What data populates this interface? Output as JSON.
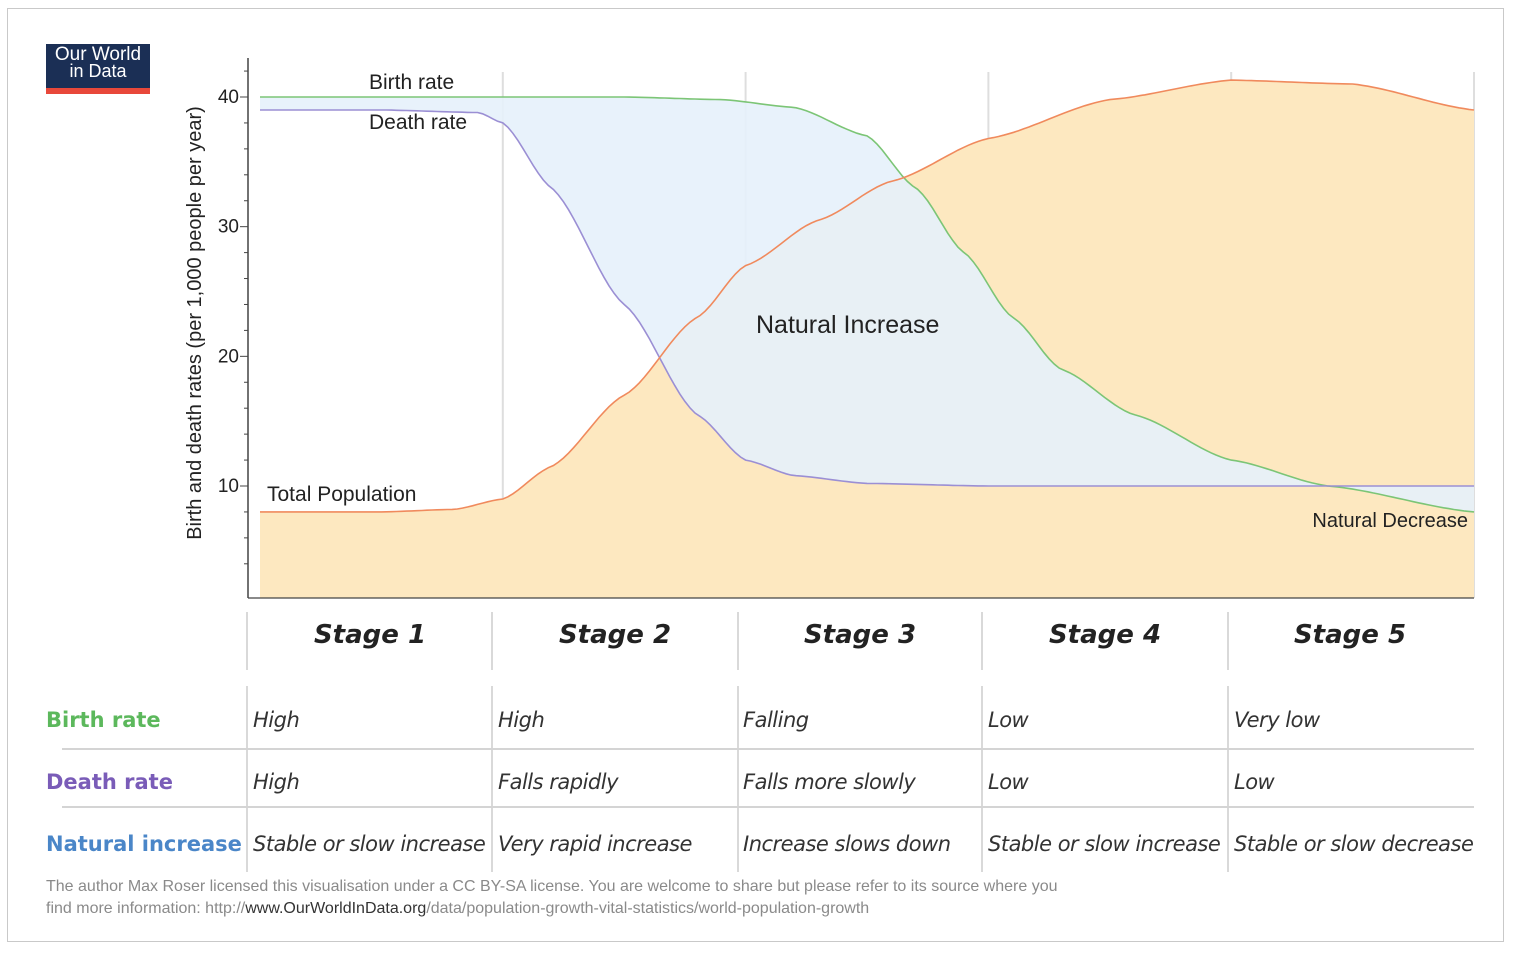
{
  "logo": {
    "line1": "Our World",
    "line2": "in Data"
  },
  "chart_data": {
    "type": "area",
    "ylabel": "Birth and death rates (per 1,000 people per year)",
    "yticks": [
      10,
      20,
      30,
      40
    ],
    "ylim": [
      3,
      43
    ],
    "x_stages": [
      "Stage 1",
      "Stage 2",
      "Stage 3",
      "Stage 4",
      "Stage 5"
    ],
    "xlim": [
      0,
      5
    ],
    "series": [
      {
        "name": "Birth rate",
        "color": "#7cc576",
        "x": [
          0,
          0.5,
          1,
          1.5,
          1.9,
          2.2,
          2.5,
          2.7,
          2.9,
          3.1,
          3.3,
          3.6,
          4.0,
          4.4,
          5.0
        ],
        "values": [
          40,
          40,
          40,
          40,
          39.8,
          39.2,
          37,
          33,
          28,
          23,
          19,
          15.5,
          12,
          10,
          8
        ]
      },
      {
        "name": "Death rate",
        "color": "#9b8fd4",
        "x": [
          0,
          0.5,
          0.9,
          1.0,
          1.2,
          1.5,
          1.8,
          2.0,
          2.2,
          2.5,
          3.0,
          3.5,
          4.0,
          5.0
        ],
        "values": [
          39,
          39,
          38.8,
          38,
          33,
          24,
          15.5,
          12,
          10.8,
          10.2,
          10,
          10,
          10,
          10
        ]
      },
      {
        "name": "Total Population",
        "color": "#f08a5d",
        "x": [
          0,
          0.5,
          0.8,
          1.0,
          1.2,
          1.5,
          1.8,
          2.0,
          2.3,
          2.6,
          3.0,
          3.5,
          4.0,
          4.5,
          5.0
        ],
        "values": [
          8,
          8,
          8.2,
          9,
          11.5,
          17,
          23,
          27,
          30.5,
          33.5,
          36.8,
          39.8,
          41.3,
          41,
          39
        ]
      }
    ],
    "annotations": [
      "Birth rate",
      "Death rate",
      "Total Population",
      "Natural Increase",
      "Natural Decrease"
    ],
    "colors": {
      "increase_fill": "#e5f1fb",
      "population_fill": "#fde8c0",
      "grid": "#dedede",
      "axis": "#444444"
    }
  },
  "table": {
    "stages": [
      "Stage 1",
      "Stage 2",
      "Stage 3",
      "Stage 4",
      "Stage 5"
    ],
    "rows": [
      {
        "label": "Birth rate",
        "color": "#5cb85c",
        "cells": [
          "High",
          "High",
          "Falling",
          "Low",
          "Very low"
        ]
      },
      {
        "label": "Death rate",
        "color": "#7a5cb8",
        "cells": [
          "High",
          "Falls rapidly",
          "Falls more slowly",
          "Low",
          "Low"
        ]
      },
      {
        "label": "Natural increase",
        "color": "#4a86c8",
        "cells": [
          "Stable or slow increase",
          "Very rapid increase",
          "Increase slows down",
          "Stable or slow increase",
          "Stable or slow decrease"
        ]
      }
    ]
  },
  "credit": {
    "line1": "The author Max Roser licensed this visualisation under a CC BY-SA license. You are welcome to share but please refer to its source where you",
    "line2_prefix": "find more information: http://",
    "line2_site": "www.OurWorldInData.org",
    "line2_path": "/data/population-growth-vital-statistics/world-population-growth"
  }
}
